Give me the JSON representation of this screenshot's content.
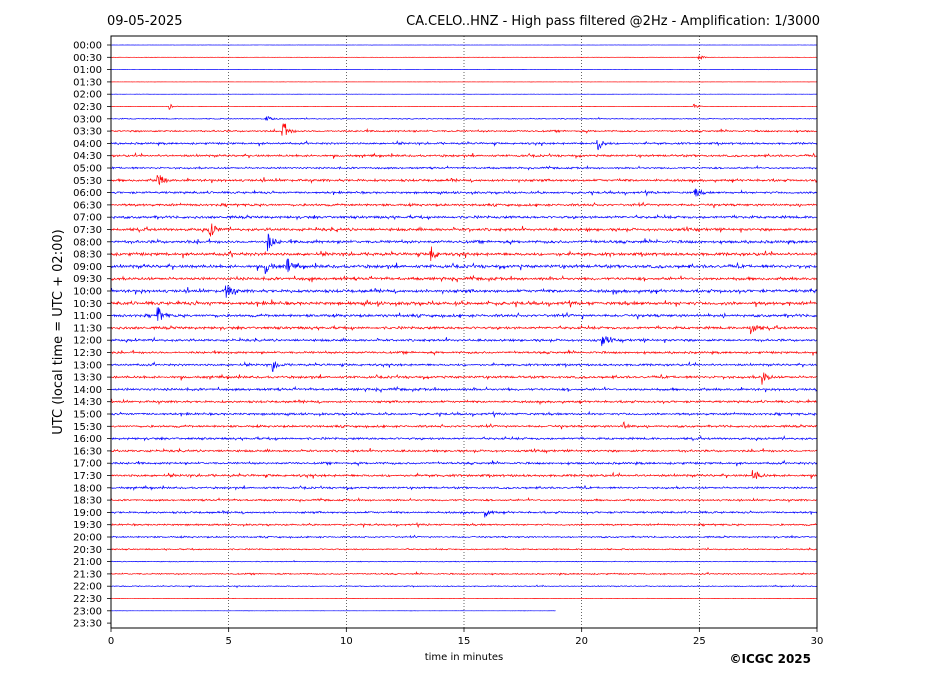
{
  "header": {
    "date": "09-05-2025",
    "title": "CA.CELO..HNZ - High pass filtered @2Hz - Amplification: 1/3000"
  },
  "footer": {
    "copyright": "©ICGC 2025"
  },
  "colors": {
    "trace_odd": "#ff0000",
    "trace_even": "#0000ff",
    "axis": "#000000"
  },
  "chart_data": {
    "type": "line",
    "xlabel": "time in minutes",
    "ylabel": "UTC (local time = UTC + 02:00)",
    "xlim": [
      0,
      30
    ],
    "x_ticks": [
      "0",
      "5",
      "10",
      "15",
      "20",
      "25",
      "30"
    ],
    "y_ticks": [
      "00:00",
      "00:30",
      "01:00",
      "01:30",
      "02:00",
      "02:30",
      "03:00",
      "03:30",
      "04:00",
      "04:30",
      "05:00",
      "05:30",
      "06:00",
      "06:30",
      "07:00",
      "07:30",
      "08:00",
      "08:30",
      "09:00",
      "09:30",
      "10:00",
      "10:30",
      "11:00",
      "11:30",
      "12:00",
      "12:30",
      "13:00",
      "13:30",
      "14:00",
      "14:30",
      "15:00",
      "15:30",
      "16:00",
      "16:30",
      "17:00",
      "17:30",
      "18:00",
      "18:30",
      "19:00",
      "19:30",
      "20:00",
      "20:30",
      "21:00",
      "21:30",
      "22:00",
      "22:30",
      "23:00",
      "23:30"
    ],
    "trace_colors": [
      "blue",
      "red"
    ],
    "vertical_gridlines_minutes": [
      5,
      10,
      15,
      20,
      25
    ],
    "grid": "dotted vertical",
    "last_trace_end_minute": 18.9,
    "traces_present": 47,
    "relative_noise_level": [
      0.05,
      0.05,
      0.04,
      0.05,
      0.05,
      0.08,
      0.25,
      0.45,
      0.5,
      0.55,
      0.45,
      0.6,
      0.55,
      0.6,
      0.65,
      0.7,
      0.7,
      0.75,
      0.8,
      0.7,
      0.75,
      0.8,
      0.7,
      0.65,
      0.6,
      0.55,
      0.55,
      0.6,
      0.6,
      0.55,
      0.55,
      0.55,
      0.55,
      0.55,
      0.55,
      0.6,
      0.5,
      0.45,
      0.5,
      0.45,
      0.4,
      0.35,
      0.2,
      0.35,
      0.25,
      0.1,
      0.03
    ],
    "events": [
      {
        "time": "00:30",
        "minute": 25.0,
        "amplitude": 0.35
      },
      {
        "time": "02:30",
        "minute": 2.5,
        "amplitude": 0.4
      },
      {
        "time": "02:30",
        "minute": 24.8,
        "amplitude": 0.4
      },
      {
        "time": "03:00",
        "minute": 6.6,
        "amplitude": 0.45
      },
      {
        "time": "03:30",
        "minute": 7.3,
        "amplitude": 1.6
      },
      {
        "time": "04:00",
        "minute": 20.7,
        "amplitude": 1.0
      },
      {
        "time": "05:30",
        "minute": 2.0,
        "amplitude": 1.2
      },
      {
        "time": "06:00",
        "minute": 24.8,
        "amplitude": 0.8
      },
      {
        "time": "07:30",
        "minute": 4.2,
        "amplitude": 1.4
      },
      {
        "time": "08:00",
        "minute": 6.7,
        "amplitude": 1.3
      },
      {
        "time": "08:30",
        "minute": 13.6,
        "amplitude": 1.2
      },
      {
        "time": "09:00",
        "minute": 6.6,
        "amplitude": 1.0
      },
      {
        "time": "09:00",
        "minute": 7.5,
        "amplitude": 1.2
      },
      {
        "time": "10:00",
        "minute": 4.9,
        "amplitude": 1.3
      },
      {
        "time": "11:00",
        "minute": 2.0,
        "amplitude": 1.2
      },
      {
        "time": "11:30",
        "minute": 27.2,
        "amplitude": 1.1
      },
      {
        "time": "12:00",
        "minute": 20.9,
        "amplitude": 1.0
      },
      {
        "time": "13:00",
        "minute": 6.9,
        "amplitude": 0.9
      },
      {
        "time": "13:30",
        "minute": 27.7,
        "amplitude": 1.0
      },
      {
        "time": "15:30",
        "minute": 21.8,
        "amplitude": 0.6
      },
      {
        "time": "17:30",
        "minute": 27.3,
        "amplitude": 1.0
      },
      {
        "time": "19:00",
        "minute": 15.9,
        "amplitude": 0.8
      }
    ]
  }
}
